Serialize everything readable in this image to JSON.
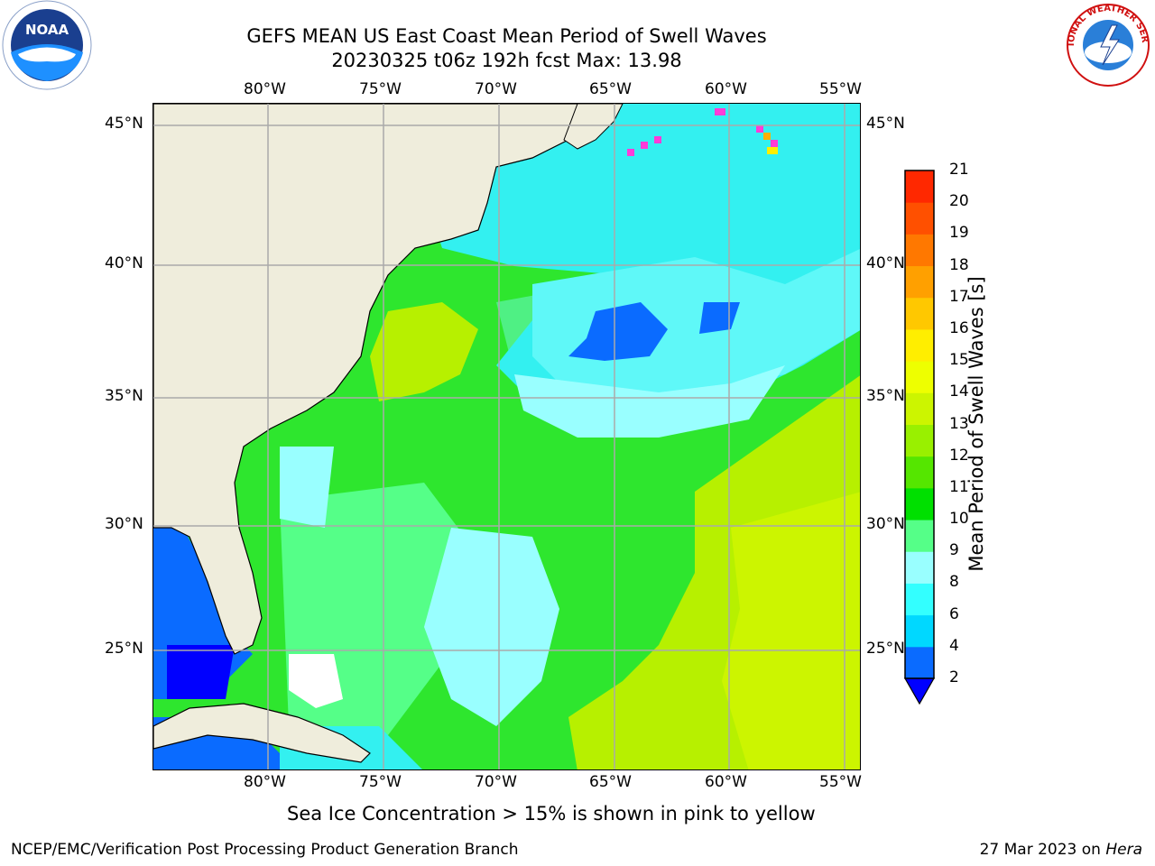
{
  "title": {
    "line1": "GEFS MEAN US East Coast Mean Period of Swell Waves",
    "line2": "20230325 t06z 192h fcst   Max: 13.98"
  },
  "map": {
    "lon_ticks": [
      "80°W",
      "75°W",
      "70°W",
      "65°W",
      "60°W",
      "55°W"
    ],
    "lat_ticks": [
      "45°N",
      "40°N",
      "35°N",
      "30°N",
      "25°N"
    ],
    "colors": {
      "land": "#efeddc",
      "ocean_ice": "#ff3bd8",
      "grid": "#aaaaaa",
      "coast": "#000000"
    }
  },
  "colorbar": {
    "label": "Mean Period of Swell Waves [s]",
    "ticks": [
      "2",
      "4",
      "6",
      "8",
      "9",
      "10",
      "11",
      "12",
      "13",
      "14",
      "15",
      "16",
      "17",
      "18",
      "19",
      "20",
      "21"
    ],
    "colors": [
      "#0a6bff",
      "#00d8ff",
      "#33ffff",
      "#99ffff",
      "#55ff88",
      "#00e000",
      "#55e600",
      "#99f000",
      "#ccf500",
      "#eeff00",
      "#ffee00",
      "#ffc800",
      "#ffa000",
      "#ff7800",
      "#ff5000",
      "#ff2800",
      "#ff0000"
    ],
    "under_color": "#0000ff"
  },
  "caption": "Sea Ice Concentration > 15% is shown in pink to yellow",
  "footer": {
    "left": "NCEP/EMC/Verification Post Processing Product Generation Branch",
    "right_date": "27 Mar 2023 on ",
    "right_host": "Hera"
  },
  "logos": {
    "noaa_text": "NOAA",
    "nws_text": "NATIONAL WEATHER SERVICE"
  }
}
